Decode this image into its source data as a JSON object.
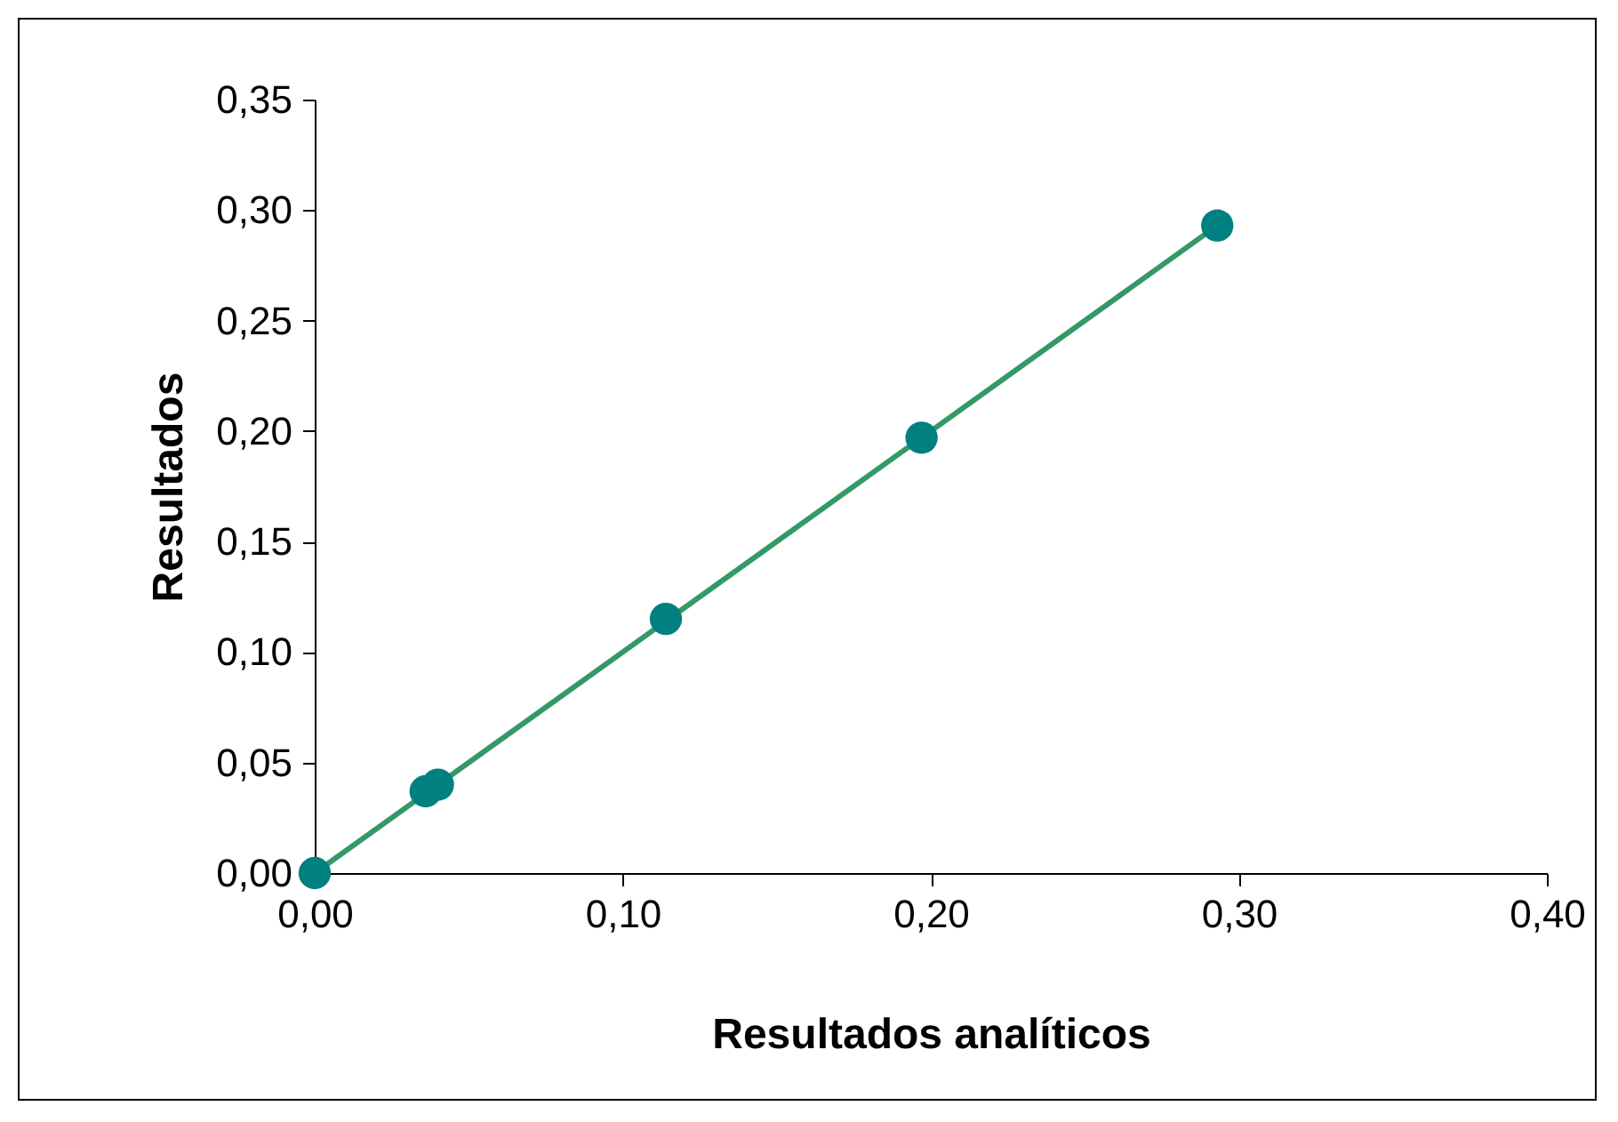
{
  "chart_data": {
    "type": "scatter",
    "xlabel": "Resultados analíticos",
    "ylabel": "Resultados",
    "grid": false,
    "xlim": [
      0,
      0.4
    ],
    "ylim": [
      0,
      0.35
    ],
    "xticks": [
      {
        "value": 0,
        "label": "0,00"
      },
      {
        "value": 0.1,
        "label": "0,10"
      },
      {
        "value": 0.2,
        "label": "0,20"
      },
      {
        "value": 0.3,
        "label": "0,30"
      },
      {
        "value": 0.4,
        "label": "0,40"
      }
    ],
    "yticks": [
      {
        "value": 0,
        "label": "0,00"
      },
      {
        "value": 0.05,
        "label": "0,05"
      },
      {
        "value": 0.1,
        "label": "0,10"
      },
      {
        "value": 0.15,
        "label": "0,15"
      },
      {
        "value": 0.2,
        "label": "0,20"
      },
      {
        "value": 0.25,
        "label": "0,25"
      },
      {
        "value": 0.3,
        "label": "0,30"
      },
      {
        "value": 0.35,
        "label": "0,35"
      }
    ],
    "series": [
      {
        "type": "line",
        "color": "#339966",
        "x": [
          0,
          0.293
        ],
        "values": [
          0,
          0.293
        ]
      },
      {
        "marker": "circle",
        "color": "#008080",
        "x": [
          0,
          0.036,
          0.04,
          0.114,
          0.197,
          0.293
        ],
        "values": [
          0,
          0.037,
          0.04,
          0.115,
          0.197,
          0.293
        ]
      }
    ]
  }
}
